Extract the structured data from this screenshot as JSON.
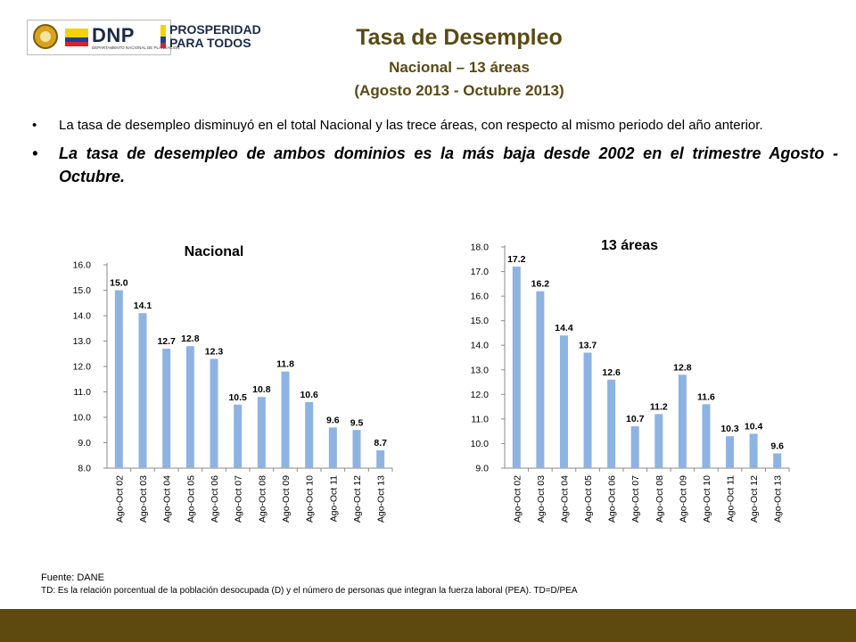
{
  "header": {
    "dnp_logo_text": "DNP",
    "dnp_subtitle": "DEPARTAMENTO NACIONAL DE PLANEACIÓN",
    "prosperidad_line1": "PROSPERIDAD",
    "prosperidad_line2": "PARA TODOS",
    "title": "Tasa de Desempleo",
    "subtitle1": "Nacional – 13 áreas",
    "subtitle2": "(Agosto 2013 - Octubre 2013)"
  },
  "bullets": {
    "marker": "•",
    "b1": "La tasa de desempleo disminuyó en el total Nacional y las trece áreas, con respecto al mismo periodo del año anterior.",
    "b2": "La tasa de desempleo de ambos dominios es la más baja desde 2002 en el trimestre Agosto - Octubre."
  },
  "chart_data": [
    {
      "type": "bar",
      "title": "Nacional",
      "categories": [
        "Ago-Oct 02",
        "Ago-Oct 03",
        "Ago-Oct 04",
        "Ago-Oct 05",
        "Ago-Oct 06",
        "Ago-Oct 07",
        "Ago-Oct 08",
        "Ago-Oct 09",
        "Ago-Oct 10",
        "Ago-Oct 11",
        "Ago-Oct 12",
        "Ago-Oct 13"
      ],
      "values": [
        15.0,
        14.1,
        12.7,
        12.8,
        12.3,
        10.5,
        10.8,
        11.8,
        10.6,
        9.6,
        9.5,
        8.7
      ],
      "value_labels": [
        "15.0",
        "14.1",
        "12.7",
        "12.8",
        "12.3",
        "10.5",
        "10.8",
        "11.8",
        "10.6",
        "9.6",
        "9.5",
        "8.7"
      ],
      "ylim": [
        8.0,
        16.0
      ],
      "ytick_labels": [
        "8.0",
        "9.0",
        "10.0",
        "11.0",
        "12.0",
        "13.0",
        "14.0",
        "15.0",
        "16.0"
      ],
      "grid": false,
      "bar_color": "#8db3e2"
    },
    {
      "type": "bar",
      "title": "13 áreas",
      "categories": [
        "Ago-Oct 02",
        "Ago-Oct 03",
        "Ago-Oct 04",
        "Ago-Oct 05",
        "Ago-Oct 06",
        "Ago-Oct 07",
        "Ago-Oct 08",
        "Ago-Oct 09",
        "Ago-Oct 10",
        "Ago-Oct 11",
        "Ago-Oct 12",
        "Ago-Oct 13"
      ],
      "values": [
        17.2,
        16.2,
        14.4,
        13.7,
        12.6,
        10.7,
        11.2,
        12.8,
        11.6,
        10.3,
        10.4,
        9.6
      ],
      "value_labels": [
        "17.2",
        "16.2",
        "14.4",
        "13.7",
        "12.6",
        "10.7",
        "11.2",
        "12.8",
        "11.6",
        "10.3",
        "10.4",
        "9.6"
      ],
      "ylim": [
        9.0,
        18.0
      ],
      "ytick_labels": [
        "9.0",
        "10.0",
        "11.0",
        "12.0",
        "13.0",
        "14.0",
        "15.0",
        "16.0",
        "17.0",
        "18.0"
      ],
      "grid": false,
      "bar_color": "#8db3e2"
    }
  ],
  "footer": {
    "source": "Fuente: DANE",
    "note": "TD:  Es la relación porcentual de la población desocupada (D) y el número de personas que integran la fuerza laboral (PEA). TD=D/PEA"
  },
  "colors": {
    "title": "#5a4a12",
    "bottom_bar": "#5e4a0e",
    "bar": "#8db3e2"
  }
}
